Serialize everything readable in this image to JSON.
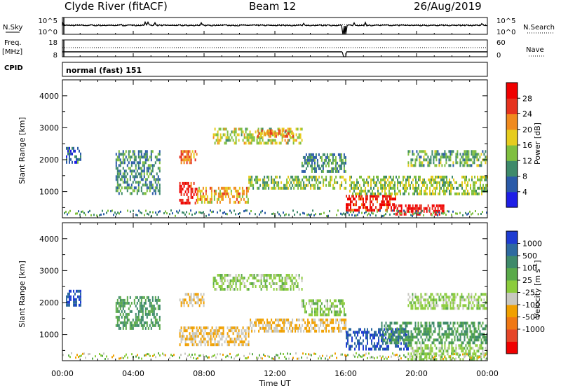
{
  "header": {
    "station": "Clyde River (fitACF)",
    "beam": "Beam 12",
    "date": "26/Aug/2019"
  },
  "strips": {
    "nsky_label": "N.Sky",
    "nsearch_label": "N.Search",
    "nsky_ticks": [
      "10^5",
      "10^0"
    ],
    "nsearch_ticks": [
      "10^5",
      "10^0"
    ],
    "freq_label": "Freq.",
    "freq_unit": "[MHz]",
    "freq_ticks": [
      "18",
      "8"
    ],
    "nave_label": "Nave",
    "nave_ticks": [
      "60",
      "0"
    ],
    "cpid_label": "CPID",
    "cpid_value": "normal (fast) 151"
  },
  "chart_data": [
    {
      "type": "heatmap",
      "panel": "power",
      "ylabel": "Slant Range [km]",
      "xlabel": "",
      "x_range_hours": [
        0,
        24
      ],
      "ylim": [
        180,
        4500
      ],
      "yticks": [
        1000,
        2000,
        3000,
        4000
      ],
      "colorbar": {
        "label": "Power [dB]",
        "ticks": [
          "4",
          "8",
          "12",
          "16",
          "20",
          "24",
          "28"
        ],
        "colors": [
          "#1e1ee6",
          "#2a5aa8",
          "#3e8a6a",
          "#7fbf3f",
          "#e6cc1e",
          "#f08a1e",
          "#e6321e",
          "#f00000"
        ]
      },
      "echo_regions": [
        {
          "t0": 6.6,
          "t1": 7.6,
          "r0": 650,
          "r1": 1300,
          "value": 28
        },
        {
          "t0": 7.6,
          "t1": 10.5,
          "r0": 700,
          "r1": 1150,
          "value": 20
        },
        {
          "t0": 6.6,
          "t1": 7.6,
          "r0": 1900,
          "r1": 2300,
          "value": 22
        },
        {
          "t0": 8.5,
          "t1": 13.5,
          "r0": 2500,
          "r1": 3000,
          "value": 16
        },
        {
          "t0": 11.0,
          "t1": 13.0,
          "r0": 2700,
          "r1": 2950,
          "value": 22
        },
        {
          "t0": 10.5,
          "t1": 16.0,
          "r0": 1100,
          "r1": 1500,
          "value": 14
        },
        {
          "t0": 13.5,
          "t1": 16.0,
          "r0": 1600,
          "r1": 2200,
          "value": 10
        },
        {
          "t0": 16.0,
          "t1": 18.8,
          "r0": 400,
          "r1": 900,
          "value": 28
        },
        {
          "t0": 18.8,
          "t1": 21.5,
          "r0": 250,
          "r1": 600,
          "value": 30
        },
        {
          "t0": 16.2,
          "t1": 24.0,
          "r0": 900,
          "r1": 1500,
          "value": 14
        },
        {
          "t0": 19.5,
          "t1": 24.0,
          "r0": 1800,
          "r1": 2300,
          "value": 12
        },
        {
          "t0": 0.2,
          "t1": 1.0,
          "r0": 1900,
          "r1": 2400,
          "value": 8
        },
        {
          "t0": 3.0,
          "t1": 5.5,
          "r0": 900,
          "r1": 2300,
          "value": 10
        }
      ]
    },
    {
      "type": "heatmap",
      "panel": "velocity",
      "ylabel": "Slant Range [km]",
      "xlabel": "Time UT",
      "x_range_hours": [
        0,
        24
      ],
      "xticks": [
        "00:00",
        "04:00",
        "08:00",
        "12:00",
        "16:00",
        "20:00",
        "00:00"
      ],
      "ylim": [
        180,
        4500
      ],
      "yticks": [
        1000,
        2000,
        3000,
        4000
      ],
      "colorbar": {
        "label": "Velocity [m s",
        "label_sup": "-1",
        "label_end": "]",
        "ticks": [
          "1000",
          "500",
          "100",
          "25",
          "-25",
          "-100",
          "-500",
          "-1000"
        ],
        "colors": [
          "#1e3cd2",
          "#2e6aa0",
          "#3e8a6a",
          "#5aaa4a",
          "#8ccc3c",
          "#c8c8c0",
          "#f0a000",
          "#f07814",
          "#e64628",
          "#f00000"
        ]
      },
      "echo_regions": [
        {
          "t0": 6.6,
          "t1": 10.5,
          "r0": 650,
          "r1": 1250,
          "value": -100
        },
        {
          "t0": 6.6,
          "t1": 8.0,
          "r0": 1900,
          "r1": 2300,
          "value": -100
        },
        {
          "t0": 8.5,
          "t1": 13.5,
          "r0": 2400,
          "r1": 2900,
          "value": 0
        },
        {
          "t0": 10.5,
          "t1": 16.0,
          "r0": 1100,
          "r1": 1500,
          "value": -100
        },
        {
          "t0": 13.5,
          "t1": 16.0,
          "r0": 1600,
          "r1": 2100,
          "value": 0
        },
        {
          "t0": 16.0,
          "t1": 19.5,
          "r0": 500,
          "r1": 1200,
          "value": 1000
        },
        {
          "t0": 19.5,
          "t1": 24.0,
          "r0": 200,
          "r1": 700,
          "value": 0
        },
        {
          "t0": 18.0,
          "t1": 24.0,
          "r0": 700,
          "r1": 1400,
          "value": 100
        },
        {
          "t0": 19.5,
          "t1": 24.0,
          "r0": 1800,
          "r1": 2300,
          "value": 0
        },
        {
          "t0": 0.2,
          "t1": 1.0,
          "r0": 1900,
          "r1": 2400,
          "value": 1000
        },
        {
          "t0": 3.0,
          "t1": 5.5,
          "r0": 1200,
          "r1": 2200,
          "value": 100
        }
      ]
    }
  ]
}
